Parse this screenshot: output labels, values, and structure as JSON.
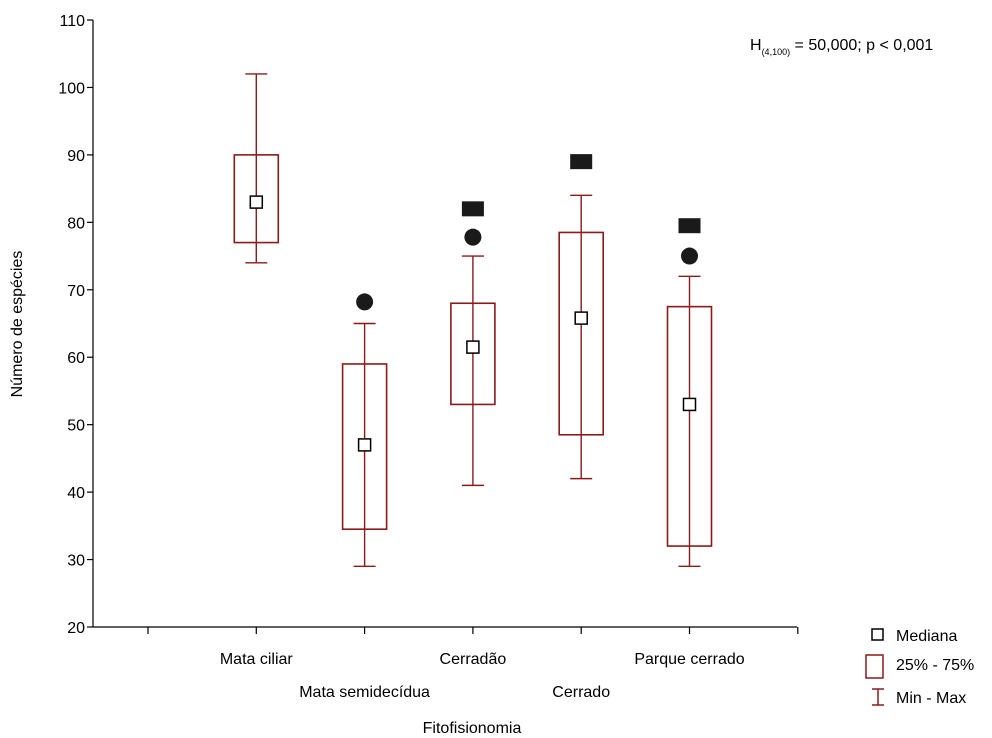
{
  "chart_data": {
    "type": "boxplot",
    "xlabel": "Fitofisionomia",
    "ylabel": "Número de espécies",
    "ylim": [
      20,
      110
    ],
    "yticks": [
      20,
      30,
      40,
      50,
      60,
      70,
      80,
      90,
      100,
      110
    ],
    "grid": false,
    "categories": [
      "Mata ciliar",
      "Mata semidecídua",
      "Cerradão",
      "Cerrado",
      "Parque cerrado"
    ],
    "series": [
      {
        "category": "Mata ciliar",
        "min": 74,
        "q1": 77,
        "median": 83,
        "q3": 90,
        "max": 102,
        "outlier": null,
        "extreme": null
      },
      {
        "category": "Mata semidecídua",
        "min": 29,
        "q1": 34.5,
        "median": 47,
        "q3": 59,
        "max": 65,
        "outlier": 68.2,
        "extreme": null
      },
      {
        "category": "Cerradão",
        "min": 41,
        "q1": 53,
        "median": 61.5,
        "q3": 68,
        "max": 75,
        "outlier": 77.8,
        "extreme": 82
      },
      {
        "category": "Cerrado",
        "min": 42,
        "q1": 48.5,
        "median": 65.8,
        "q3": 78.5,
        "max": 84,
        "outlier": null,
        "extreme": 89
      },
      {
        "category": "Parque cerrado",
        "min": 29,
        "q1": 32,
        "median": 53,
        "q3": 67.5,
        "max": 72,
        "outlier": 75,
        "extreme": 79.5
      }
    ],
    "annotation": {
      "H": "H",
      "sub": "(4,100)",
      "rest": " = 50,000; p < 0,001"
    },
    "legend": {
      "placement": "bottom-right",
      "items": [
        "Mediana",
        "25% - 75%",
        "Min - Max"
      ]
    },
    "colors": {
      "box": "#8b1a1a",
      "axis": "#000000",
      "marker": "#1a1a1a"
    }
  }
}
